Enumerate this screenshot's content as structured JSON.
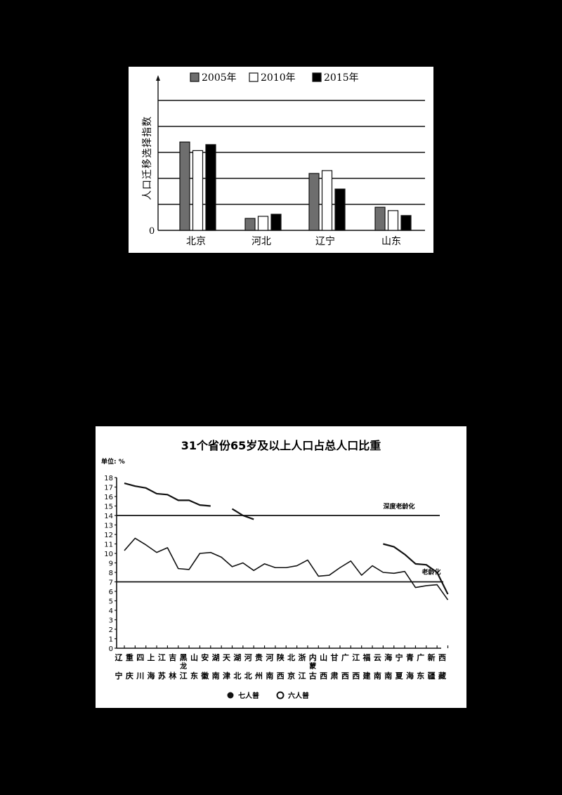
{
  "chart_data": [
    {
      "type": "bar",
      "title": "",
      "ylabel": "人口迁移选择指数",
      "xlabel": "",
      "categories": [
        "北京",
        "河北",
        "辽宁",
        "山东"
      ],
      "series": [
        {
          "name": "2005年",
          "color": "#6e6e6e",
          "values": [
            3.4,
            0.46,
            2.19,
            0.89
          ]
        },
        {
          "name": "2010年",
          "color": "#ffffff",
          "values": [
            3.07,
            0.54,
            2.3,
            0.76
          ]
        },
        {
          "name": "2015年",
          "color": "#000000",
          "values": [
            3.3,
            0.62,
            1.59,
            0.57
          ]
        }
      ],
      "y_tick_labels": [
        "0"
      ],
      "ylim": [
        0,
        5
      ],
      "grid": true,
      "legend_position": "top"
    },
    {
      "type": "line",
      "title": "31个省份65岁及以上人口占总人口比重",
      "unit_label": "单位: %",
      "ylim": [
        0,
        18
      ],
      "y_ticks": [
        0,
        1,
        2,
        3,
        4,
        5,
        6,
        7,
        8,
        9,
        10,
        11,
        12,
        13,
        14,
        15,
        16,
        17,
        18
      ],
      "categories": [
        {
          "top": "辽",
          "bottom": "宁"
        },
        {
          "top": "重",
          "bottom": "庆"
        },
        {
          "top": "四",
          "bottom": "川"
        },
        {
          "top": "上",
          "bottom": "海"
        },
        {
          "top": "江",
          "bottom": "苏"
        },
        {
          "top": "吉",
          "bottom": "林"
        },
        {
          "top": "黑",
          "mid": "龙",
          "bottom": "江"
        },
        {
          "top": "山",
          "bottom": "东"
        },
        {
          "top": "安",
          "bottom": "徽"
        },
        {
          "top": "湖",
          "bottom": "南"
        },
        {
          "top": "天",
          "bottom": "津"
        },
        {
          "top": "湖",
          "bottom": "北"
        },
        {
          "top": "河",
          "bottom": "北"
        },
        {
          "top": "贵",
          "bottom": "州"
        },
        {
          "top": "河",
          "bottom": "南"
        },
        {
          "top": "陕",
          "bottom": "西"
        },
        {
          "top": "北",
          "bottom": "京"
        },
        {
          "top": "浙",
          "bottom": "江"
        },
        {
          "top": "内",
          "mid": "蒙",
          "bottom": "古"
        },
        {
          "top": "山",
          "bottom": "西"
        },
        {
          "top": "甘",
          "bottom": "肃"
        },
        {
          "top": "广",
          "bottom": "西"
        },
        {
          "top": "江",
          "bottom": "西"
        },
        {
          "top": "福",
          "bottom": "建"
        },
        {
          "top": "云",
          "bottom": "南"
        },
        {
          "top": "海",
          "bottom": "南"
        },
        {
          "top": "宁",
          "bottom": "夏"
        },
        {
          "top": "青",
          "bottom": "海"
        },
        {
          "top": "广",
          "bottom": "东"
        },
        {
          "top": "新",
          "bottom": "疆"
        },
        {
          "top": "西",
          "bottom": "藏"
        }
      ],
      "series": [
        {
          "name": "七人普",
          "marker": "filled-circle",
          "values": [
            17.4,
            17.1,
            16.9,
            16.3,
            16.2,
            15.6,
            15.6,
            15.1,
            15.0,
            null,
            14.7,
            14.0,
            13.6,
            null,
            null,
            null,
            null,
            null,
            null,
            null,
            null,
            null,
            null,
            null,
            11.0,
            10.7,
            9.9,
            8.9,
            8.8,
            8.0,
            5.7
          ]
        },
        {
          "name": "六人普",
          "marker": "open-circle",
          "values": [
            10.3,
            11.6,
            10.9,
            10.1,
            10.6,
            8.4,
            8.3,
            10.0,
            10.1,
            9.6,
            8.6,
            9.0,
            8.2,
            8.9,
            8.5,
            8.5,
            8.7,
            9.3,
            7.6,
            7.7,
            8.5,
            9.2,
            7.7,
            8.7,
            8.0,
            7.9,
            8.1,
            6.4,
            6.6,
            6.7,
            5.1
          ]
        }
      ],
      "reference_lines": [
        {
          "value": 14,
          "label": "深度老龄化"
        },
        {
          "value": 7,
          "label": "老龄化"
        }
      ],
      "legend": [
        "七人普",
        "六人普"
      ],
      "legend_position": "bottom"
    }
  ]
}
